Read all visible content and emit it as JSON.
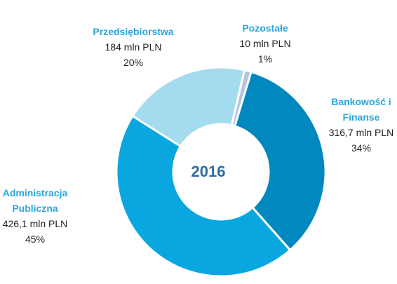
{
  "chart_data": {
    "type": "donut",
    "categories": [
      "Pozostałe",
      "Bankowość i Finanse",
      "Administracja Publiczna",
      "Przedsiębiorstwa"
    ],
    "values": [
      10,
      316.7,
      426.1,
      184
    ],
    "value_labels": [
      "10 mln PLN",
      "316,7 mln PLN",
      "426,1 mln PLN",
      "184 mln PLN"
    ],
    "shares": [
      1,
      34,
      45,
      20
    ],
    "share_labels": [
      "1%",
      "34%",
      "45%",
      "20%"
    ],
    "colors": [
      "#b4c3e0",
      "#0088bf",
      "#0aa6e0",
      "#a5dbee"
    ],
    "center_label": "2016"
  }
}
